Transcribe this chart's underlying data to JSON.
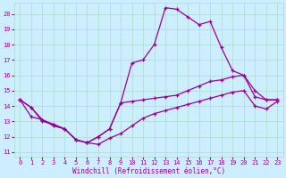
{
  "xlabel": "Windchill (Refroidissement éolien,°C)",
  "bg_color": "#cceeff",
  "grid_color": "#aaddcc",
  "line_color": "#990099",
  "spine_color": "#aaaaaa",
  "x_ticks": [
    0,
    1,
    2,
    3,
    4,
    5,
    6,
    7,
    8,
    9,
    10,
    11,
    12,
    13,
    14,
    15,
    16,
    17,
    18,
    19,
    20,
    21,
    22,
    23
  ],
  "y_ticks": [
    11,
    12,
    13,
    14,
    15,
    16,
    17,
    18,
    19,
    20
  ],
  "xlim": [
    -0.5,
    23.5
  ],
  "ylim": [
    10.7,
    20.7
  ],
  "line1_x": [
    0,
    1,
    2,
    3,
    4,
    5,
    6,
    7,
    8,
    9,
    10,
    11,
    12,
    13,
    14,
    15,
    16,
    17,
    18,
    19,
    20,
    21,
    22,
    23
  ],
  "line1_y": [
    14.4,
    13.9,
    13.0,
    12.8,
    12.5,
    11.8,
    11.6,
    12.0,
    12.5,
    14.2,
    16.8,
    17.0,
    18.0,
    20.4,
    20.3,
    19.8,
    19.3,
    19.5,
    17.8,
    16.3,
    16.0,
    15.0,
    14.4,
    14.4
  ],
  "line2_x": [
    0,
    1,
    2,
    3,
    4,
    5,
    6,
    7,
    8,
    9,
    10,
    11,
    12,
    13,
    14,
    15,
    16,
    17,
    18,
    19,
    20,
    21,
    22,
    23
  ],
  "line2_y": [
    14.4,
    13.9,
    13.1,
    12.8,
    12.5,
    11.8,
    11.6,
    12.0,
    12.5,
    14.2,
    14.3,
    14.4,
    14.5,
    14.6,
    14.7,
    15.0,
    15.3,
    15.6,
    15.7,
    15.9,
    16.0,
    14.6,
    14.4,
    14.4
  ],
  "line3_x": [
    0,
    1,
    2,
    3,
    4,
    5,
    6,
    7,
    8,
    9,
    10,
    11,
    12,
    13,
    14,
    15,
    16,
    17,
    18,
    19,
    20,
    21,
    22,
    23
  ],
  "line3_y": [
    14.4,
    13.3,
    13.1,
    12.7,
    12.5,
    11.8,
    11.6,
    11.5,
    11.9,
    12.2,
    12.7,
    13.2,
    13.5,
    13.7,
    13.9,
    14.1,
    14.3,
    14.5,
    14.7,
    14.9,
    15.0,
    14.0,
    13.8,
    14.3
  ],
  "tick_fontsize": 5,
  "xlabel_fontsize": 5.5,
  "marker_size": 3,
  "linewidth": 0.9
}
